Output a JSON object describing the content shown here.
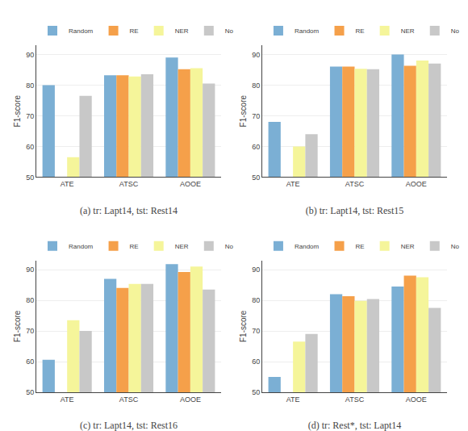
{
  "chart_data": [
    {
      "type": "bar",
      "xlabel": "(a) tr: Lapt14, tst: Rest14",
      "ylabel": "F1-score",
      "categories": [
        "ATE",
        "ATSC",
        "AOOE"
      ],
      "series": [
        {
          "name": "Random",
          "color": "#7bafd4",
          "values": [
            80.0,
            83.2,
            89.0
          ]
        },
        {
          "name": "RE",
          "color": "#f5a04a",
          "values": [
            null,
            83.2,
            85.2
          ]
        },
        {
          "name": "NER",
          "color": "#f5f59a",
          "values": [
            56.5,
            82.8,
            85.5
          ]
        },
        {
          "name": "No",
          "color": "#c8c8c8",
          "values": [
            76.5,
            83.5,
            80.5
          ]
        }
      ],
      "ylim": [
        50,
        93
      ],
      "yticks": [
        50,
        60,
        70,
        80,
        90
      ],
      "grid": true,
      "legend": "upper left"
    },
    {
      "type": "bar",
      "xlabel": "(b) tr: Lapt14, tst: Rest15",
      "ylabel": "F1-score",
      "categories": [
        "ATE",
        "ATSC",
        "AOOE"
      ],
      "series": [
        {
          "name": "Random",
          "color": "#7bafd4",
          "values": [
            68.0,
            86.0,
            90.0
          ]
        },
        {
          "name": "RE",
          "color": "#f5a04a",
          "values": [
            null,
            86.0,
            86.3
          ]
        },
        {
          "name": "NER",
          "color": "#f5f59a",
          "values": [
            60.0,
            85.3,
            88.0
          ]
        },
        {
          "name": "No",
          "color": "#c8c8c8",
          "values": [
            64.0,
            85.2,
            87.0
          ]
        }
      ],
      "ylim": [
        50,
        93
      ],
      "yticks": [
        50,
        60,
        70,
        80,
        90
      ],
      "grid": true,
      "legend": "upper left"
    },
    {
      "type": "bar",
      "xlabel": "(c) tr: Lapt14, tst: Rest16",
      "ylabel": "F1-score",
      "categories": [
        "ATE",
        "ATSC",
        "AOOE"
      ],
      "series": [
        {
          "name": "Random",
          "color": "#7bafd4",
          "values": [
            60.6,
            87.0,
            91.8
          ]
        },
        {
          "name": "RE",
          "color": "#f5a04a",
          "values": [
            null,
            84.0,
            89.2
          ]
        },
        {
          "name": "NER",
          "color": "#f5f59a",
          "values": [
            73.5,
            85.3,
            91.0
          ]
        },
        {
          "name": "No",
          "color": "#c8c8c8",
          "values": [
            70.0,
            85.3,
            83.5
          ]
        }
      ],
      "ylim": [
        50,
        93
      ],
      "yticks": [
        50,
        60,
        70,
        80,
        90
      ],
      "grid": true,
      "legend": "upper left"
    },
    {
      "type": "bar",
      "xlabel": "(d) tr: Rest*, tst: Lapt14",
      "ylabel": "F1-score",
      "categories": [
        "ATE",
        "ATSC",
        "AOOE"
      ],
      "series": [
        {
          "name": "Random",
          "color": "#7bafd4",
          "values": [
            55.0,
            82.0,
            84.5
          ]
        },
        {
          "name": "RE",
          "color": "#f5a04a",
          "values": [
            null,
            81.3,
            88.0
          ]
        },
        {
          "name": "NER",
          "color": "#f5f59a",
          "values": [
            66.5,
            79.8,
            87.5
          ]
        },
        {
          "name": "No",
          "color": "#c8c8c8",
          "values": [
            69.0,
            80.4,
            77.5
          ]
        }
      ],
      "ylim": [
        50,
        93
      ],
      "yticks": [
        50,
        60,
        70,
        80,
        90
      ],
      "grid": true,
      "legend": "upper left"
    }
  ]
}
